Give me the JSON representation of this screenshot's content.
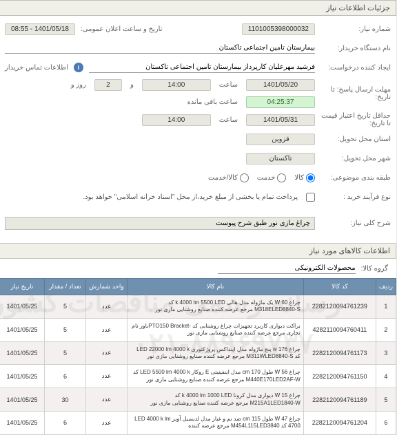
{
  "header": {
    "title": "جزئیات اطلاعات نیاز"
  },
  "form": {
    "need_number_label": "شماره نیاز:",
    "need_number": "1101005398000032",
    "announce_label": "تاریخ و ساعت اعلان عمومی:",
    "announce_value": "1401/05/18 - 08:55",
    "buyer_org_label": "نام دستگاه خریدار:",
    "buyer_org": "بیمارستان تامین اجتماعی تاکستان",
    "requester_label": "ایجاد کننده درخواست:",
    "requester": "فرشید مهرعلیان کارپرداز بیمارستان تامین اجتماعی تاکستان",
    "buyer_contact_label": "اطلاعات تماس خریدار",
    "deadline_label": "مهلت ارسال پاسخ: تا تاریخ:",
    "deadline_date": "1401/05/20",
    "saat": "ساعت",
    "deadline_time": "14:00",
    "va": "و",
    "days": "2",
    "rooz": "روز و",
    "countdown": "04:25:37",
    "countdown_suffix": "ساعت باقی مانده",
    "credit_expire_label": "حداقل تاریخ اعتبار قیمت تا تاریخ:",
    "credit_date": "1401/05/31",
    "credit_time": "14:00",
    "province_label": "استان محل تحویل:",
    "province": "قزوین",
    "city_label": "شهر محل تحویل:",
    "city": "تاکستان",
    "category_label": "طبقه بندی موضوعی:",
    "cat_kala": "کالا",
    "cat_khadmat": "خدمت",
    "cat_kala_khadmat": "کالا/خدمت",
    "purchase_type_label": "نوع فرآیند خرید :",
    "purchase_note": "پرداخت تمام یا بخشی از مبلغ خرید،از محل \"اسناد خزانه اسلامی\" خواهد بود.",
    "desc_label": "شرح کلی نیاز:",
    "desc_value": "چراغ مازی نور طبق شرح پیوست"
  },
  "items_section": {
    "title": "اطلاعات کالاهای مورد نیاز",
    "group_label": "گروه کالا:",
    "group_value": "محصولات الکترونیکی"
  },
  "table": {
    "headers": {
      "row": "ردیف",
      "code": "کد کالا",
      "name": "نام کالا",
      "unit": "واحد شمارش",
      "qty": "تعداد / مقدار",
      "need_date": "تاریخ نیاز"
    },
    "rows": [
      {
        "n": "1",
        "code": "2282120094761239",
        "name": "چراغ W 60 یک ماژوله مدل هالی k 4000 lm 5500 LED کد M318ELED8840-S مرجع عرضه کننده صنایع روشنایی مازی نور",
        "unit": "عدد",
        "qty": "5",
        "date": "1401/05/25"
      },
      {
        "n": "2",
        "code": "4282110094760411",
        "name": "براکت دیواری کاربرد تجهیزات چراغ روشنایی کد -PTO150 Bracketباور نام تجاری مرجع عرضه کننده صنایع روشنایی مازی نور",
        "unit": "عدد",
        "qty": "5",
        "date": "1401/05/25"
      },
      {
        "n": "3",
        "code": "2282120094761173",
        "name": "چراغ w 176 پنج ماژوله مدل اینداکس پروژکتوری LED 22000 lm 4000 k کد M311WLED8840-S مرجع عرضه کننده صنایع روشنایی مازی نور",
        "unit": "عدد",
        "qty": "5",
        "date": "1401/05/25"
      },
      {
        "n": "4",
        "code": "2282120094761150",
        "name": "چراغ W 56 طول cm 170 مدل اینفینیتی E روکار LED 5500 lm 4000 k کد M440E170LED2AF-W مرجع عرضه کننده صنایع روشنایی مازی نور",
        "unit": "عدد",
        "qty": "6",
        "date": "1401/05/25"
      },
      {
        "n": "5",
        "code": "2282120094761189",
        "name": "چراغ W 15 دیواری مدل کرونا k 4000 lm 1000 LED کد M215A1LED1840-W مرجع عرضه کننده صنایع روشنایی مازی نور",
        "unit": "عدد",
        "qty": "30",
        "date": "1401/05/25"
      },
      {
        "n": "6",
        "code": "2282120094761204",
        "name": "چراغ W 47 طول cm 115 ضد نم و غبار مدل لدیسیل آویز LED 4000 k lm 4700 کد M454L115LED3840 مرجع عرضه کننده",
        "unit": "عدد",
        "qty": "6",
        "date": "1401/05/25"
      }
    ]
  },
  "watermarks": {
    "wm1": "رسانه رسمی مناقصات کشور",
    "wm2": "۰۲۱-۸۸۹۶۹۷۳۷"
  }
}
